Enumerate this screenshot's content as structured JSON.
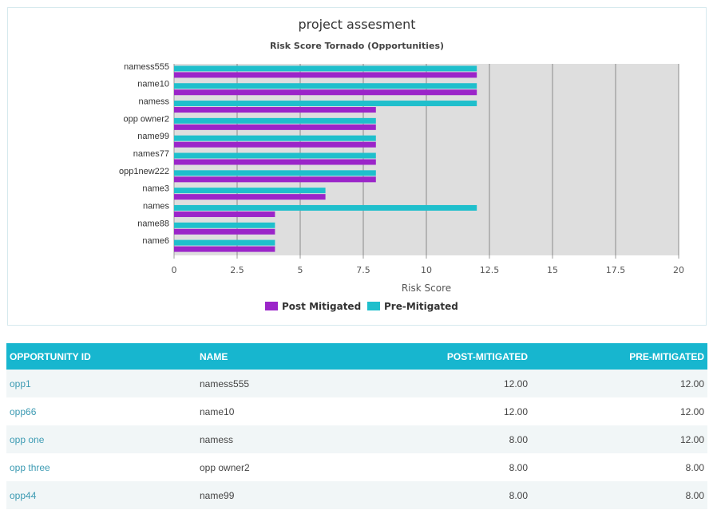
{
  "chart_data": {
    "type": "bar",
    "orientation": "horizontal",
    "title": "project assesment",
    "subtitle": "Risk Score Tornado (Opportunities)",
    "xlabel": "Risk Score",
    "xlim": [
      0,
      20
    ],
    "xticks": [
      "0",
      "2.5",
      "5",
      "7.5",
      "10",
      "12.5",
      "15",
      "17.5",
      "20"
    ],
    "grid": true,
    "legend_position": "bottom-center",
    "categories": [
      "namess555",
      "name10",
      "namess",
      "opp owner2",
      "name99",
      "names77",
      "opp1new222",
      "name3",
      "names",
      "name88",
      "name6"
    ],
    "series": [
      {
        "name": "Pre-Mitigated",
        "color": "#1fbfcc",
        "values": [
          12,
          12,
          12,
          8,
          8,
          8,
          8,
          6,
          12,
          4,
          4
        ]
      },
      {
        "name": "Post Mitigated",
        "color": "#9b25c9",
        "values": [
          12,
          12,
          8,
          8,
          8,
          8,
          8,
          6,
          4,
          4,
          4
        ]
      }
    ],
    "legend_order": [
      "Post Mitigated",
      "Pre-Mitigated"
    ],
    "plot_background": "#dedede"
  },
  "table": {
    "headers": [
      "OPPORTUNITY ID",
      "NAME",
      "POST-MITIGATED",
      "PRE-MITIGATED"
    ],
    "rows": [
      {
        "id": "opp1",
        "name": "namess555",
        "post": "12.00",
        "pre": "12.00"
      },
      {
        "id": "opp66",
        "name": "name10",
        "post": "12.00",
        "pre": "12.00"
      },
      {
        "id": "opp one",
        "name": "namess",
        "post": "8.00",
        "pre": "12.00"
      },
      {
        "id": "opp three",
        "name": "opp owner2",
        "post": "8.00",
        "pre": "8.00"
      },
      {
        "id": "opp44",
        "name": "name99",
        "post": "8.00",
        "pre": "8.00"
      }
    ],
    "header_color": "#17b6cf",
    "link_color": "#3d9bb3"
  }
}
